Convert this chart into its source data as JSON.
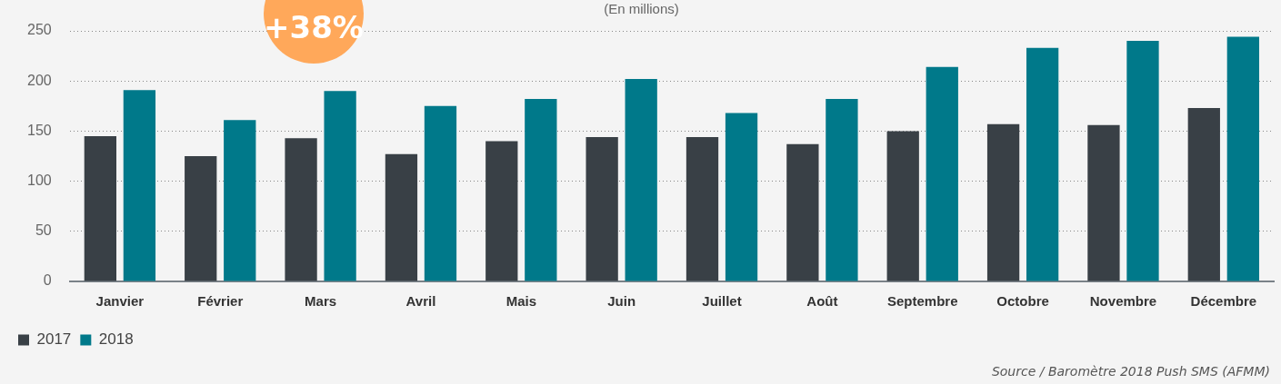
{
  "chart_data": {
    "type": "bar",
    "subtitle": "(En millions)",
    "categories": [
      "Janvier",
      "Février",
      "Mars",
      "Avril",
      "Mais",
      "Juin",
      "Juillet",
      "Août",
      "Septembre",
      "Octobre",
      "Novembre",
      "Décembre"
    ],
    "series": [
      {
        "name": "2017",
        "color": "#394046",
        "values": [
          145,
          125,
          143,
          127,
          140,
          144,
          144,
          137,
          150,
          157,
          156,
          173
        ]
      },
      {
        "name": "2018",
        "color": "#00798a",
        "values": [
          191,
          161,
          190,
          175,
          182,
          202,
          168,
          182,
          214,
          233,
          240,
          244
        ]
      }
    ],
    "ylim": [
      0,
      250
    ],
    "yticks": [
      0,
      50,
      100,
      150,
      200,
      250
    ],
    "grid": "y",
    "legend": "bottom left",
    "annotations": [
      "+38%",
      "Source / Baromètre 2018 Push SMS (AFMM)"
    ]
  }
}
